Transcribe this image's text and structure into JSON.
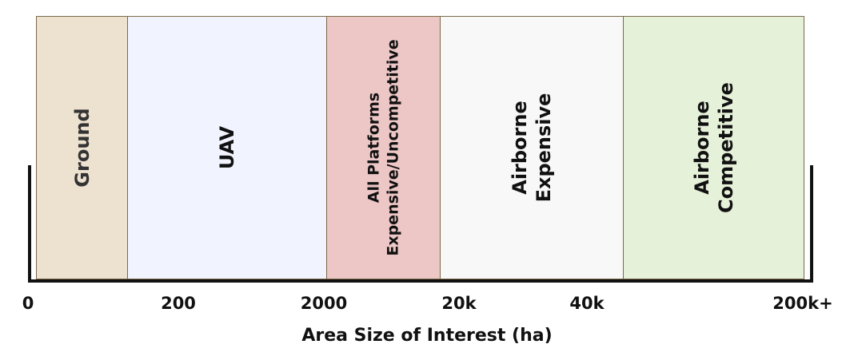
{
  "bands": [
    {
      "lines": [
        "Ground"
      ],
      "color": "#ede2d0"
    },
    {
      "lines": [
        "UAV"
      ],
      "color": "#f1f4fe"
    },
    {
      "lines": [
        "All Platforms",
        "Expensive/Uncompetitive"
      ],
      "color": "#edc6c6"
    },
    {
      "lines": [
        "Airborne",
        "Expensive"
      ],
      "color": "#f8f8f8"
    },
    {
      "lines": [
        "Airborne",
        "Competitive"
      ],
      "color": "#e6f1d9"
    }
  ],
  "axis": {
    "ticks": [
      "0",
      "200",
      "2000",
      "20k",
      "40k",
      "200k+"
    ],
    "title": "Area Size of Interest (ha)"
  }
}
